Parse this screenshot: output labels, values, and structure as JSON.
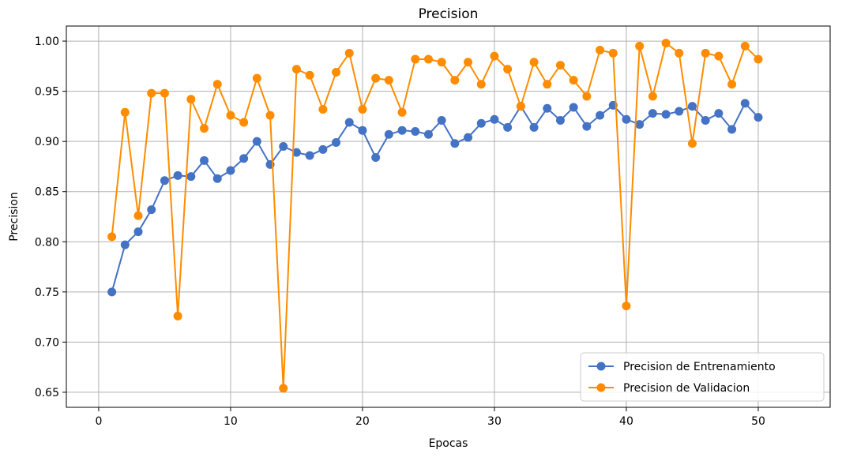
{
  "chart_data": {
    "type": "line",
    "title": "Precision",
    "xlabel": "Epocas",
    "ylabel": "Precision",
    "xlim": [
      -2.45,
      55.45
    ],
    "ylim": [
      0.635,
      1.015
    ],
    "xticks": [
      0,
      10,
      20,
      30,
      40,
      50
    ],
    "yticks": [
      0.65,
      0.7,
      0.75,
      0.8,
      0.85,
      0.9,
      0.95,
      1.0
    ],
    "ytick_labels": [
      "0.65",
      "0.70",
      "0.75",
      "0.80",
      "0.85",
      "0.90",
      "0.95",
      "1.00"
    ],
    "grid": true,
    "legend_position": "lower-right",
    "x": [
      1,
      2,
      3,
      4,
      5,
      6,
      7,
      8,
      9,
      10,
      11,
      12,
      13,
      14,
      15,
      16,
      17,
      18,
      19,
      20,
      21,
      22,
      23,
      24,
      25,
      26,
      27,
      28,
      29,
      30,
      31,
      32,
      33,
      34,
      35,
      36,
      37,
      38,
      39,
      40,
      41,
      42,
      43,
      44,
      45,
      46,
      47,
      48,
      49,
      50
    ],
    "series": [
      {
        "name": "Precision de Entrenamiento",
        "color": "#4472c4",
        "values": [
          0.75,
          0.797,
          0.81,
          0.832,
          0.861,
          0.866,
          0.865,
          0.881,
          0.863,
          0.871,
          0.883,
          0.9,
          0.877,
          0.895,
          0.889,
          0.886,
          0.892,
          0.899,
          0.919,
          0.911,
          0.884,
          0.907,
          0.911,
          0.91,
          0.907,
          0.921,
          0.898,
          0.904,
          0.918,
          0.922,
          0.914,
          0.935,
          0.914,
          0.933,
          0.921,
          0.934,
          0.915,
          0.926,
          0.936,
          0.922,
          0.917,
          0.928,
          0.927,
          0.93,
          0.935,
          0.921,
          0.928,
          0.912,
          0.938,
          0.924
        ]
      },
      {
        "name": "Precision de Validacion",
        "color": "#ff8c00",
        "values": [
          0.805,
          0.929,
          0.826,
          0.948,
          0.948,
          0.726,
          0.942,
          0.913,
          0.957,
          0.926,
          0.919,
          0.963,
          0.926,
          0.654,
          0.972,
          0.966,
          0.932,
          0.969,
          0.988,
          0.932,
          0.963,
          0.961,
          0.929,
          0.982,
          0.982,
          0.979,
          0.961,
          0.979,
          0.957,
          0.985,
          0.972,
          0.935,
          0.979,
          0.957,
          0.976,
          0.961,
          0.945,
          0.991,
          0.988,
          0.736,
          0.995,
          0.945,
          0.998,
          0.988,
          0.898,
          0.988,
          0.985,
          0.957,
          0.995,
          0.982
        ]
      }
    ]
  }
}
